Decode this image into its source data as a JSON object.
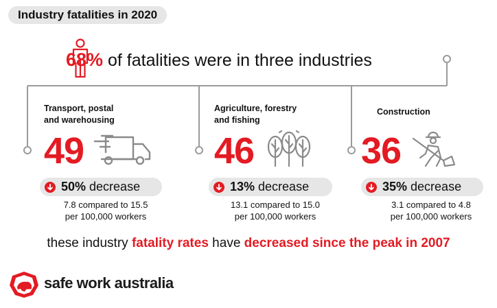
{
  "header": {
    "title": "Industry fatalities in 2020"
  },
  "headline": {
    "percent": "68%",
    "text": " of fatalities were in three industries"
  },
  "industries": [
    {
      "name_line1": "Transport, postal",
      "name_line2": "and warehousing",
      "count": "49",
      "change_pct": "50%",
      "change_word": " decrease",
      "rate_line1": "7.8 compared to 15.5",
      "rate_line2": "per 100,000 workers",
      "icon": "truck-icon"
    },
    {
      "name_line1": "Agriculture, forestry",
      "name_line2": "and fishing",
      "count": "46",
      "change_pct": "13%",
      "change_word": " decrease",
      "rate_line1": "13.1 compared to 15.0",
      "rate_line2": "per 100,000 workers",
      "icon": "trees-icon"
    },
    {
      "name_line1": "Construction",
      "name_line2": "",
      "count": "36",
      "change_pct": "35%",
      "change_word": " decrease",
      "rate_line1": "3.1 compared to 4.8",
      "rate_line2": "per 100,000 workers",
      "icon": "construction-worker-icon"
    }
  ],
  "footer_note": {
    "part1": "these industry ",
    "part2": "fatality rates",
    "part3": " have ",
    "part4": "decreased since the peak in 2007"
  },
  "brand": {
    "name": "safe work australia",
    "logo": "safe-work-australia-logo"
  },
  "colors": {
    "accent": "#e31b23",
    "pill": "#e6e6e6",
    "line": "#9a9a9a"
  }
}
